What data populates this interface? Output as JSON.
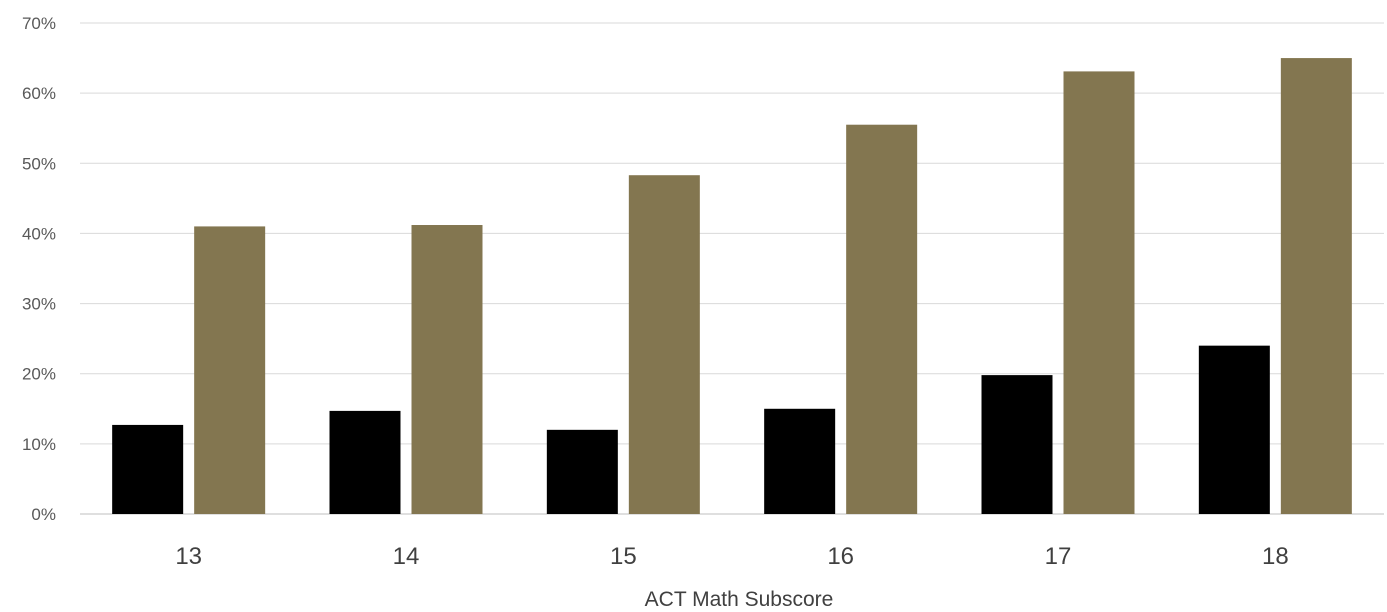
{
  "chart_data": {
    "type": "bar",
    "categories": [
      "13",
      "14",
      "15",
      "16",
      "17",
      "18"
    ],
    "series": [
      {
        "color": "#000000",
        "values": [
          12.7,
          14.7,
          12.0,
          15.0,
          19.8,
          24.0
        ]
      },
      {
        "color": "#837650",
        "values": [
          41.0,
          41.2,
          48.3,
          55.5,
          63.1,
          65.0
        ]
      }
    ],
    "xlabel": "ACT Math Subscore",
    "ylabel": "",
    "ylim": [
      0,
      70
    ],
    "yticks": [
      "0%",
      "10%",
      "20%",
      "30%",
      "40%",
      "50%",
      "60%",
      "70%"
    ],
    "grid": true,
    "legend": "none"
  }
}
